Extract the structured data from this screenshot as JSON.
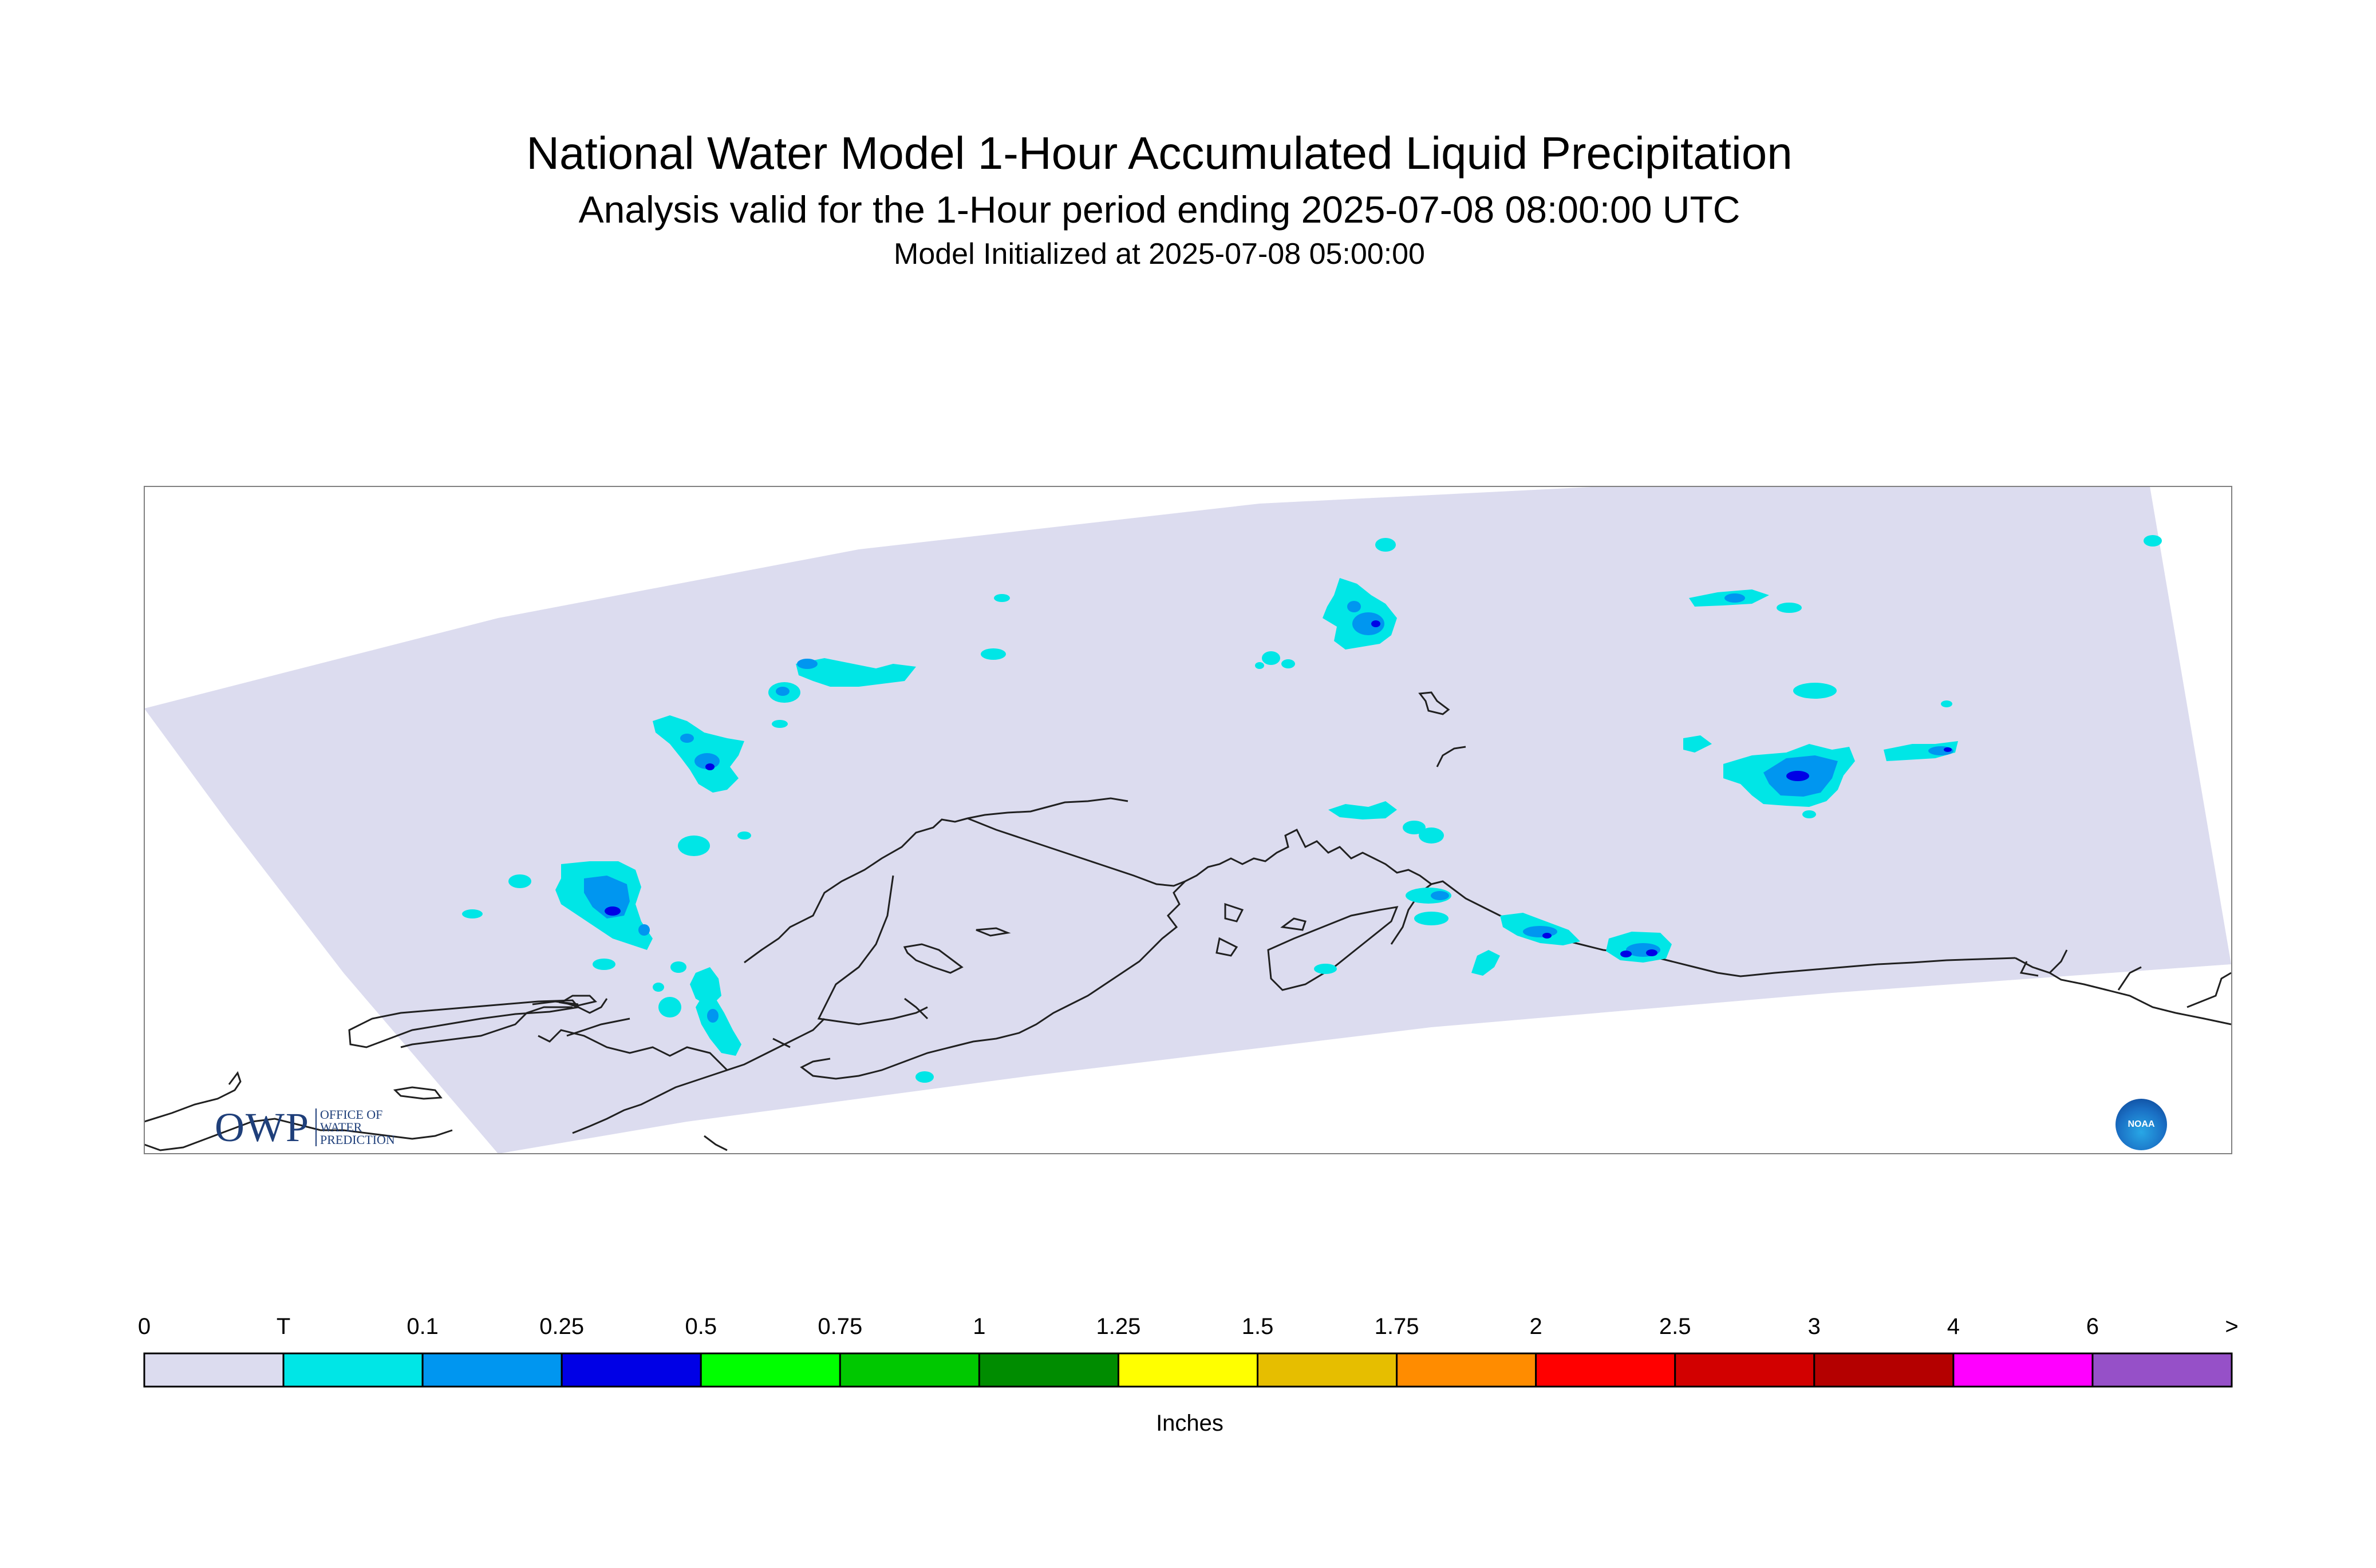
{
  "title": "National Water Model 1-Hour Accumulated Liquid Precipitation",
  "subtitle": "Analysis valid for the 1-Hour period ending 2025-07-08 08:00:00 UTC",
  "initialized": "Model Initialized at 2025-07-08 05:00:00",
  "colors": {
    "domain_fill": "#dcdcef",
    "coastline": "#202020",
    "map_border": "#808080"
  },
  "legend": {
    "units": "Inches",
    "labels": [
      "0",
      "T",
      "0.1",
      "0.25",
      "0.5",
      "0.75",
      "1",
      "1.25",
      "1.5",
      "1.75",
      "2",
      "2.5",
      "3",
      "4",
      "6",
      ">"
    ],
    "colors": [
      "#dcdcef",
      "#00e6e6",
      "#0096f0",
      "#0000e6",
      "#00ff00",
      "#00c800",
      "#008c00",
      "#ffff00",
      "#e6be00",
      "#ff8c00",
      "#ff0000",
      "#d20000",
      "#b40000",
      "#ff00ff",
      "#9650c8"
    ]
  },
  "logos": {
    "owp_letters": "OWP",
    "owp_text": [
      "OFFICE OF",
      "WATER",
      "PREDICTION"
    ],
    "noaa_text": "NOAA"
  }
}
